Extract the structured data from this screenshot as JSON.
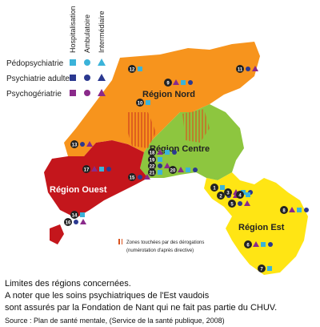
{
  "legend": {
    "columns": [
      "Hospitalisation",
      "Ambulatoire",
      "Intermédiaire"
    ],
    "rows": [
      "Pédopsychiatrie",
      "Psychiatrie adulte",
      "Psychogériatrie"
    ]
  },
  "regions": [
    "Région Nord",
    "Région Centre",
    "Région Ouest",
    "Région Est"
  ],
  "markers": [
    "12",
    "11",
    "9",
    "10",
    "13",
    "18",
    "19",
    "22",
    "20",
    "21",
    "15",
    "17",
    "1",
    "2",
    "3",
    "4",
    "5",
    "8",
    "14",
    "16",
    "6",
    "7"
  ],
  "note": {
    "title": "Zones touchées par des dérogations",
    "subtitle": "(numérotation d'après directive)"
  },
  "caption": [
    "Limites des régions concernées.",
    "A noter que les soins psychiatriques de l'Est vaudois",
    "sont assurés par la Fondation de Nant qui ne fait pas partie du CHUV."
  ],
  "source": "Source : Plan de santé mentale, (Service de la santé publique, 2008)"
}
